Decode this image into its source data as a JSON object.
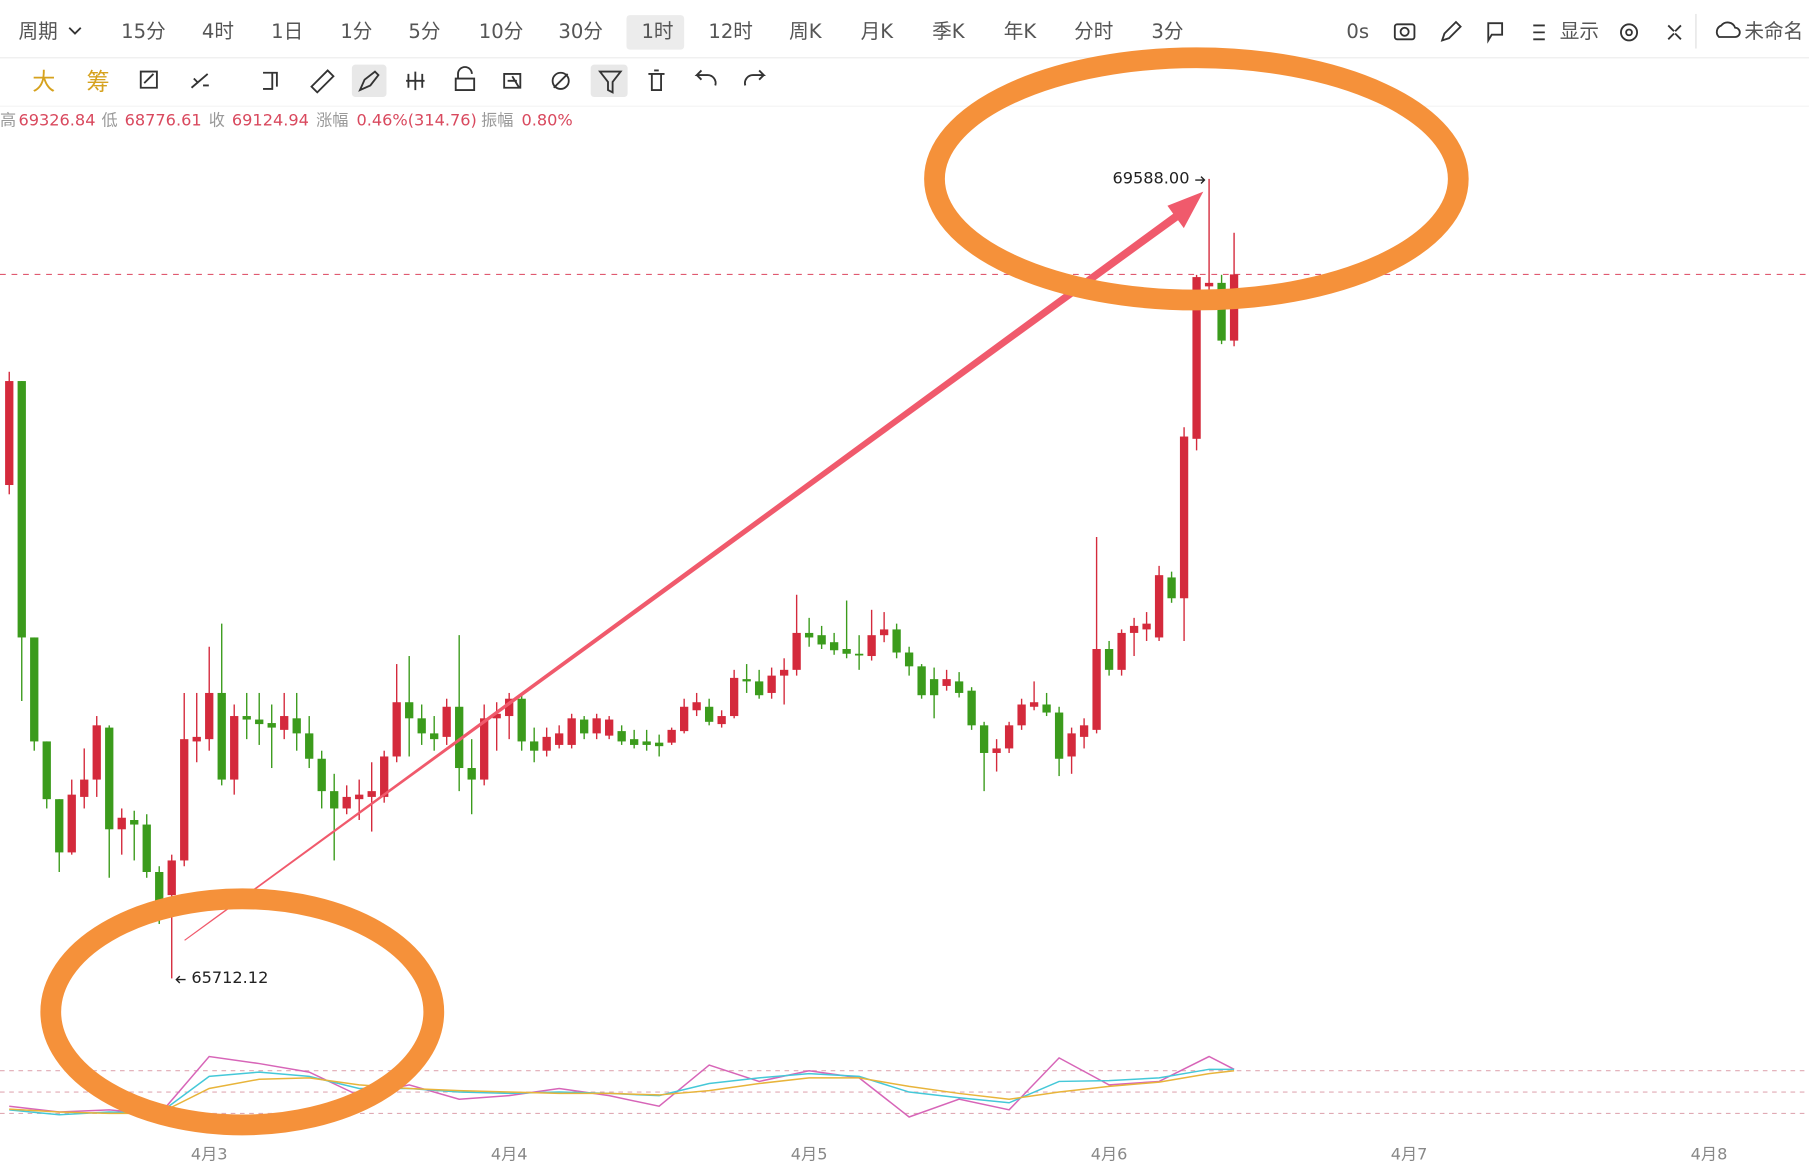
{
  "toolbar": {
    "period_label": "周期",
    "periods": [
      "15分",
      "4时",
      "1日",
      "1分",
      "5分",
      "10分",
      "30分",
      "1时",
      "12时",
      "周K",
      "月K",
      "季K",
      "年K",
      "分时",
      "3分"
    ],
    "selected": 7,
    "right": [
      "0s",
      "显示",
      "未命名"
    ]
  },
  "tools": [
    "大",
    "筹"
  ],
  "info": {
    "high_label": "高",
    "low_label": "低",
    "close_label": "收",
    "change_label": "涨幅",
    "change": "0.46%(314.76)",
    "amplitude_label": "振幅",
    "amplitude": "0.80%"
  },
  "chart_data": {
    "type": "candlestick",
    "up_color": "#d42a3c",
    "down_color": "#3b9b1c",
    "open": [
      68104,
      68608,
      67365,
      66861,
      66581,
      66323,
      66592,
      66676,
      66928,
      66435,
      66480,
      66458,
      66228,
      66116,
      66284,
      66861,
      66872,
      67096,
      66676,
      66984,
      66967,
      66950,
      66917,
      66973,
      66900,
      66777,
      66620,
      66536,
      66581,
      66592,
      66592,
      66788,
      67051,
      66973,
      66900,
      66883,
      67029,
      66732,
      66676,
      66973,
      66984,
      67068,
      66861,
      66816,
      66844,
      66844,
      66967,
      66900,
      66889,
      66911,
      66872,
      66861,
      66855,
      66855,
      66911,
      67012,
      67029,
      66945,
      66984,
      67163,
      67152,
      67096,
      67180,
      67208,
      67387,
      67376,
      67342,
      67309,
      67286,
      67275,
      67376,
      67404,
      67292,
      67225,
      67163,
      67130,
      67152,
      67107,
      66939,
      66805,
      66827,
      66939,
      67029,
      67040,
      67001,
      66788,
      66883,
      66917,
      67309,
      67208,
      67387,
      67404,
      67365,
      67656,
      67555,
      68328,
      69067,
      69084,
      68804
    ],
    "high": [
      68653,
      68608,
      67365,
      66861,
      66581,
      66676,
      66827,
      66984,
      66939,
      66536,
      66525,
      66508,
      66256,
      66312,
      67096,
      67096,
      67320,
      67432,
      67040,
      67096,
      67096,
      67040,
      67096,
      67096,
      66984,
      66816,
      66704,
      66648,
      66676,
      66760,
      66816,
      67236,
      67275,
      67040,
      66984,
      67068,
      67376,
      66872,
      67040,
      67051,
      67096,
      67096,
      66928,
      66928,
      66939,
      66995,
      66984,
      66995,
      66984,
      66939,
      66917,
      66917,
      66894,
      66928,
      67068,
      67096,
      67068,
      67012,
      67208,
      67236,
      67208,
      67219,
      67264,
      67572,
      67460,
      67421,
      67387,
      67544,
      67376,
      67499,
      67488,
      67432,
      67320,
      67236,
      67219,
      67208,
      67197,
      67124,
      66956,
      66872,
      66956,
      67068,
      67152,
      67096,
      67029,
      66928,
      66973,
      67852,
      67348,
      67404,
      67460,
      67488,
      67712,
      67684,
      68384,
      69123,
      69588,
      69123,
      69326.84
    ],
    "low": [
      68059,
      67057,
      66816,
      66536,
      66228,
      66312,
      66536,
      66592,
      66200,
      66312,
      66284,
      66200,
      65976,
      65712.12,
      66256,
      66760,
      66816,
      66648,
      66603,
      66872,
      66844,
      66732,
      66872,
      66816,
      66732,
      66536,
      66284,
      66508,
      66480,
      66424,
      66564,
      66760,
      66788,
      66844,
      66816,
      66844,
      66620,
      66508,
      66648,
      66816,
      66872,
      66816,
      66760,
      66788,
      66827,
      66827,
      66872,
      66872,
      66872,
      66844,
      66827,
      66816,
      66788,
      66844,
      66900,
      66984,
      66939,
      66928,
      66973,
      67096,
      67068,
      67068,
      67040,
      67180,
      67320,
      67309,
      67281,
      67264,
      67208,
      67253,
      67342,
      67264,
      67180,
      67068,
      66973,
      67107,
      67074,
      66917,
      66620,
      66715,
      66805,
      66917,
      67012,
      66984,
      66693,
      66704,
      66827,
      66900,
      67180,
      67180,
      67275,
      67348,
      67348,
      67533,
      67348,
      68272,
      69045,
      68787,
      68776.61
    ],
    "close": [
      68608,
      67365,
      66861,
      66581,
      66323,
      66603,
      66676,
      66939,
      66435,
      66491,
      66458,
      66228,
      66088,
      66284,
      66872,
      66883,
      67096,
      66676,
      66984,
      66967,
      66945,
      66928,
      66984,
      66900,
      66777,
      66620,
      66536,
      66592,
      66603,
      66620,
      66788,
      67051,
      66973,
      66900,
      66872,
      67029,
      66732,
      66676,
      66973,
      66995,
      67068,
      66861,
      66816,
      66883,
      66900,
      66973,
      66900,
      66973,
      66967,
      66861,
      66844,
      66844,
      66838,
      66917,
      67029,
      67051,
      66956,
      66984,
      67169,
      67152,
      67085,
      67180,
      67208,
      67387,
      67365,
      67331,
      67303,
      67286,
      67281,
      67376,
      67404,
      67292,
      67225,
      67085,
      67085,
      67163,
      67096,
      66939,
      66805,
      66827,
      66939,
      67040,
      67051,
      67001,
      66777,
      66900,
      66939,
      67309,
      67208,
      67387,
      67421,
      67432,
      67667,
      67555,
      68339,
      69112,
      69084,
      68804,
      69124.94
    ],
    "xlim": [
      -0.74,
      144
    ],
    "xticks": [
      {
        "value": 16,
        "label": "4月3"
      },
      {
        "value": 40,
        "label": "4月4"
      },
      {
        "value": 64,
        "label": "4月5"
      },
      {
        "value": 88,
        "label": "4月6"
      },
      {
        "value": 112,
        "label": "4月7"
      },
      {
        "value": 136,
        "label": "4月8"
      }
    ],
    "annotations": [
      {
        "index": 96,
        "value": 69588,
        "label": "69588.00"
      },
      {
        "index": 13,
        "value": 65712.12,
        "label": "65712.12"
      }
    ],
    "indicator": {
      "ylim": [
        -10,
        110
      ],
      "levels": [
        20,
        50,
        80
      ],
      "x": [
        0,
        4,
        8,
        12,
        16,
        20,
        24,
        28,
        32,
        36,
        40,
        44,
        48,
        52,
        56,
        60,
        64,
        68,
        72,
        76,
        80,
        84,
        88,
        92,
        96,
        98
      ],
      "series": [
        {
          "color": "#d765b8",
          "values": [
            30,
            22,
            25,
            18,
            100,
            90,
            78,
            45,
            60,
            40,
            45,
            55,
            45,
            30,
            88,
            65,
            80,
            70,
            15,
            40,
            25,
            98,
            60,
            65,
            100,
            82
          ]
        },
        {
          "color": "#45c8d8",
          "values": [
            25,
            18,
            22,
            20,
            72,
            78,
            72,
            55,
            55,
            50,
            48,
            50,
            48,
            45,
            62,
            70,
            76,
            72,
            50,
            42,
            35,
            65,
            66,
            70,
            82,
            82
          ]
        },
        {
          "color": "#e8b43a",
          "values": [
            26,
            22,
            20,
            20,
            55,
            68,
            70,
            60,
            55,
            52,
            50,
            48,
            48,
            46,
            52,
            62,
            70,
            70,
            58,
            48,
            40,
            50,
            58,
            64,
            76,
            80
          ]
        }
      ]
    }
  }
}
